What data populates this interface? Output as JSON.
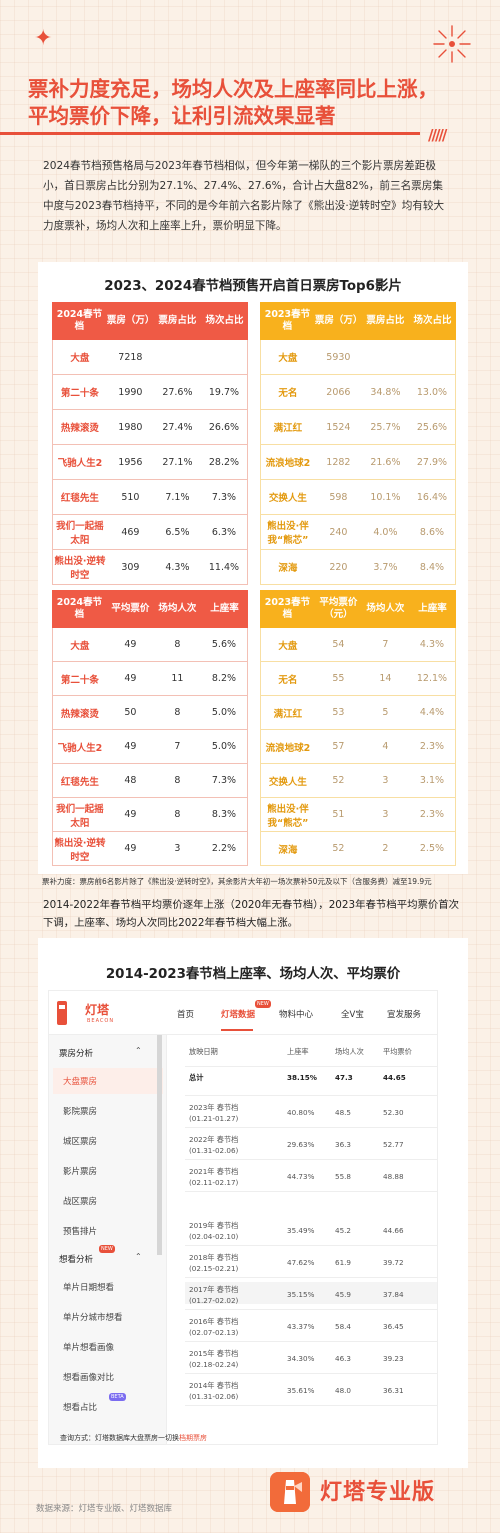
{
  "title_lines": [
    "票补力度充足，场均人次及上座率同比上涨，",
    "平均票价下降，让利引流效果显著"
  ],
  "intro": "2024春节档预售格局与2023年春节档相似，但今年第一梯队的三个影片票房差距极小，首日票房占比分别为27.1%、27.4%、27.6%，合计占大盘82%，前三名票房集中度与2023春节档持平，不同的是今年前六名影片除了《熊出没·逆转时空》均有较大力度票补，场均人次和上座率上升，票价明显下降。",
  "section1_title": "2023、2024春节档预售开启首日票房Top6影片",
  "t1": {
    "headers": [
      "2024春节档",
      "票房（万）",
      "票房占比",
      "场次占比"
    ],
    "rows": [
      [
        "大盘",
        "7218",
        "",
        ""
      ],
      [
        "第二十条",
        "1990",
        "27.6%",
        "19.7%"
      ],
      [
        "热辣滚烫",
        "1980",
        "27.4%",
        "26.6%"
      ],
      [
        "飞驰人生2",
        "1956",
        "27.1%",
        "28.2%"
      ],
      [
        "红毯先生",
        "510",
        "7.1%",
        "7.3%"
      ],
      [
        "我们一起摇太阳",
        "469",
        "6.5%",
        "6.3%"
      ],
      [
        "熊出没·逆转时空",
        "309",
        "4.3%",
        "11.4%"
      ]
    ]
  },
  "t2": {
    "headers": [
      "2023春节档",
      "票房（万）",
      "票房占比",
      "场次占比"
    ],
    "rows": [
      [
        "大盘",
        "5930",
        "",
        ""
      ],
      [
        "无名",
        "2066",
        "34.8%",
        "13.0%"
      ],
      [
        "满江红",
        "1524",
        "25.7%",
        "25.6%"
      ],
      [
        "流浪地球2",
        "1282",
        "21.6%",
        "27.9%"
      ],
      [
        "交换人生",
        "598",
        "10.1%",
        "16.4%"
      ],
      [
        "熊出没·伴我“熊芯”",
        "240",
        "4.0%",
        "8.6%"
      ],
      [
        "深海",
        "220",
        "3.7%",
        "8.4%"
      ]
    ]
  },
  "t3": {
    "headers": [
      "2024春节档",
      "平均票价",
      "场均人次",
      "上座率"
    ],
    "rows": [
      [
        "大盘",
        "49",
        "8",
        "5.6%"
      ],
      [
        "第二十条",
        "49",
        "11",
        "8.2%"
      ],
      [
        "热辣滚烫",
        "50",
        "8",
        "5.0%"
      ],
      [
        "飞驰人生2",
        "49",
        "7",
        "5.0%"
      ],
      [
        "红毯先生",
        "48",
        "8",
        "7.3%"
      ],
      [
        "我们一起摇太阳",
        "49",
        "8",
        "8.3%"
      ],
      [
        "熊出没·逆转时空",
        "49",
        "3",
        "2.2%"
      ]
    ]
  },
  "t4": {
    "headers": [
      "2023春节档",
      "平均票价（元）",
      "场均人次",
      "上座率"
    ],
    "rows": [
      [
        "大盘",
        "54",
        "7",
        "4.3%"
      ],
      [
        "无名",
        "55",
        "14",
        "12.1%"
      ],
      [
        "满江红",
        "53",
        "5",
        "4.4%"
      ],
      [
        "流浪地球2",
        "57",
        "4",
        "2.3%"
      ],
      [
        "交换人生",
        "52",
        "3",
        "3.1%"
      ],
      [
        "熊出没·伴我“熊芯”",
        "51",
        "3",
        "2.3%"
      ],
      [
        "深海",
        "52",
        "2",
        "2.5%"
      ]
    ]
  },
  "supplement_note": "票补力度：票房前6名影片除了《熊出没·逆转时空》，其余影片大年初一场次票补50元及以下（含服务费）减至19.9元",
  "para2": "2014-2022年春节档平均票价逐年上涨（2020年无春节档），2023年春节档平均票价首次下调，上座率、场均人次同比2022年春节档大幅上涨。",
  "section2_title": "2014-2023春节档上座率、场均人次、平均票价",
  "app": {
    "logo": "灯塔",
    "logo_sub": "BEACON",
    "nav": [
      "首页",
      "灯塔数据",
      "物料中心",
      "全V宝",
      "宣发服务"
    ],
    "new_badge": "NEW",
    "beta_badge": "BETA",
    "side_group1": "票房分析",
    "side_items1": [
      "大盘票房",
      "影院票房",
      "城区票房",
      "影片票房",
      "战区票房",
      "预售排片"
    ],
    "side_group2": "想看分析",
    "side_items2": [
      "单片日期想看",
      "单片分城市想看",
      "单片想看画像",
      "想看画像对比",
      "想看占比"
    ],
    "columns": [
      "放映日期",
      "上座率",
      "场均人次",
      "平均票价"
    ],
    "rows": [
      {
        "date": "总计",
        "range": "",
        "occ": "38.15%",
        "avg": "47.3",
        "price": "44.65",
        "bold": true
      },
      {
        "date": "2023年 春节档",
        "range": "(01.21-01.27)",
        "occ": "40.80%",
        "avg": "48.5",
        "price": "52.30"
      },
      {
        "date": "2022年 春节档",
        "range": "(01.31-02.06)",
        "occ": "29.63%",
        "avg": "36.3",
        "price": "52.77"
      },
      {
        "date": "2021年 春节档",
        "range": "(02.11-02.17)",
        "occ": "44.73%",
        "avg": "55.8",
        "price": "48.88"
      },
      {
        "date": "2019年 春节档",
        "range": "(02.04-02.10)",
        "occ": "35.49%",
        "avg": "45.2",
        "price": "44.66"
      },
      {
        "date": "2018年 春节档",
        "range": "(02.15-02.21)",
        "occ": "47.62%",
        "avg": "61.9",
        "price": "39.72"
      },
      {
        "date": "2017年 春节档",
        "range": "(01.27-02.02)",
        "occ": "35.15%",
        "avg": "45.9",
        "price": "37.84"
      },
      {
        "date": "2016年 春节档",
        "range": "(02.07-02.13)",
        "occ": "43.37%",
        "avg": "58.4",
        "price": "36.45"
      },
      {
        "date": "2015年 春节档",
        "range": "(02.18-02.24)",
        "occ": "34.30%",
        "avg": "46.3",
        "price": "39.23"
      },
      {
        "date": "2014年 春节档",
        "range": "(01.31-02.06)",
        "occ": "35.61%",
        "avg": "48.0",
        "price": "36.31"
      }
    ]
  },
  "query_prefix": "查询方式：灯塔数据库大盘票房一切换",
  "query_link": "档期票房",
  "footer_source": "数据来源：灯塔专业版、灯塔数据库",
  "brand": "灯塔专业版",
  "colors": {
    "accent": "#e8503a",
    "red_header": "#ef5a45",
    "yellow_header": "#f8b11d",
    "bg": "#fbf1e7"
  }
}
